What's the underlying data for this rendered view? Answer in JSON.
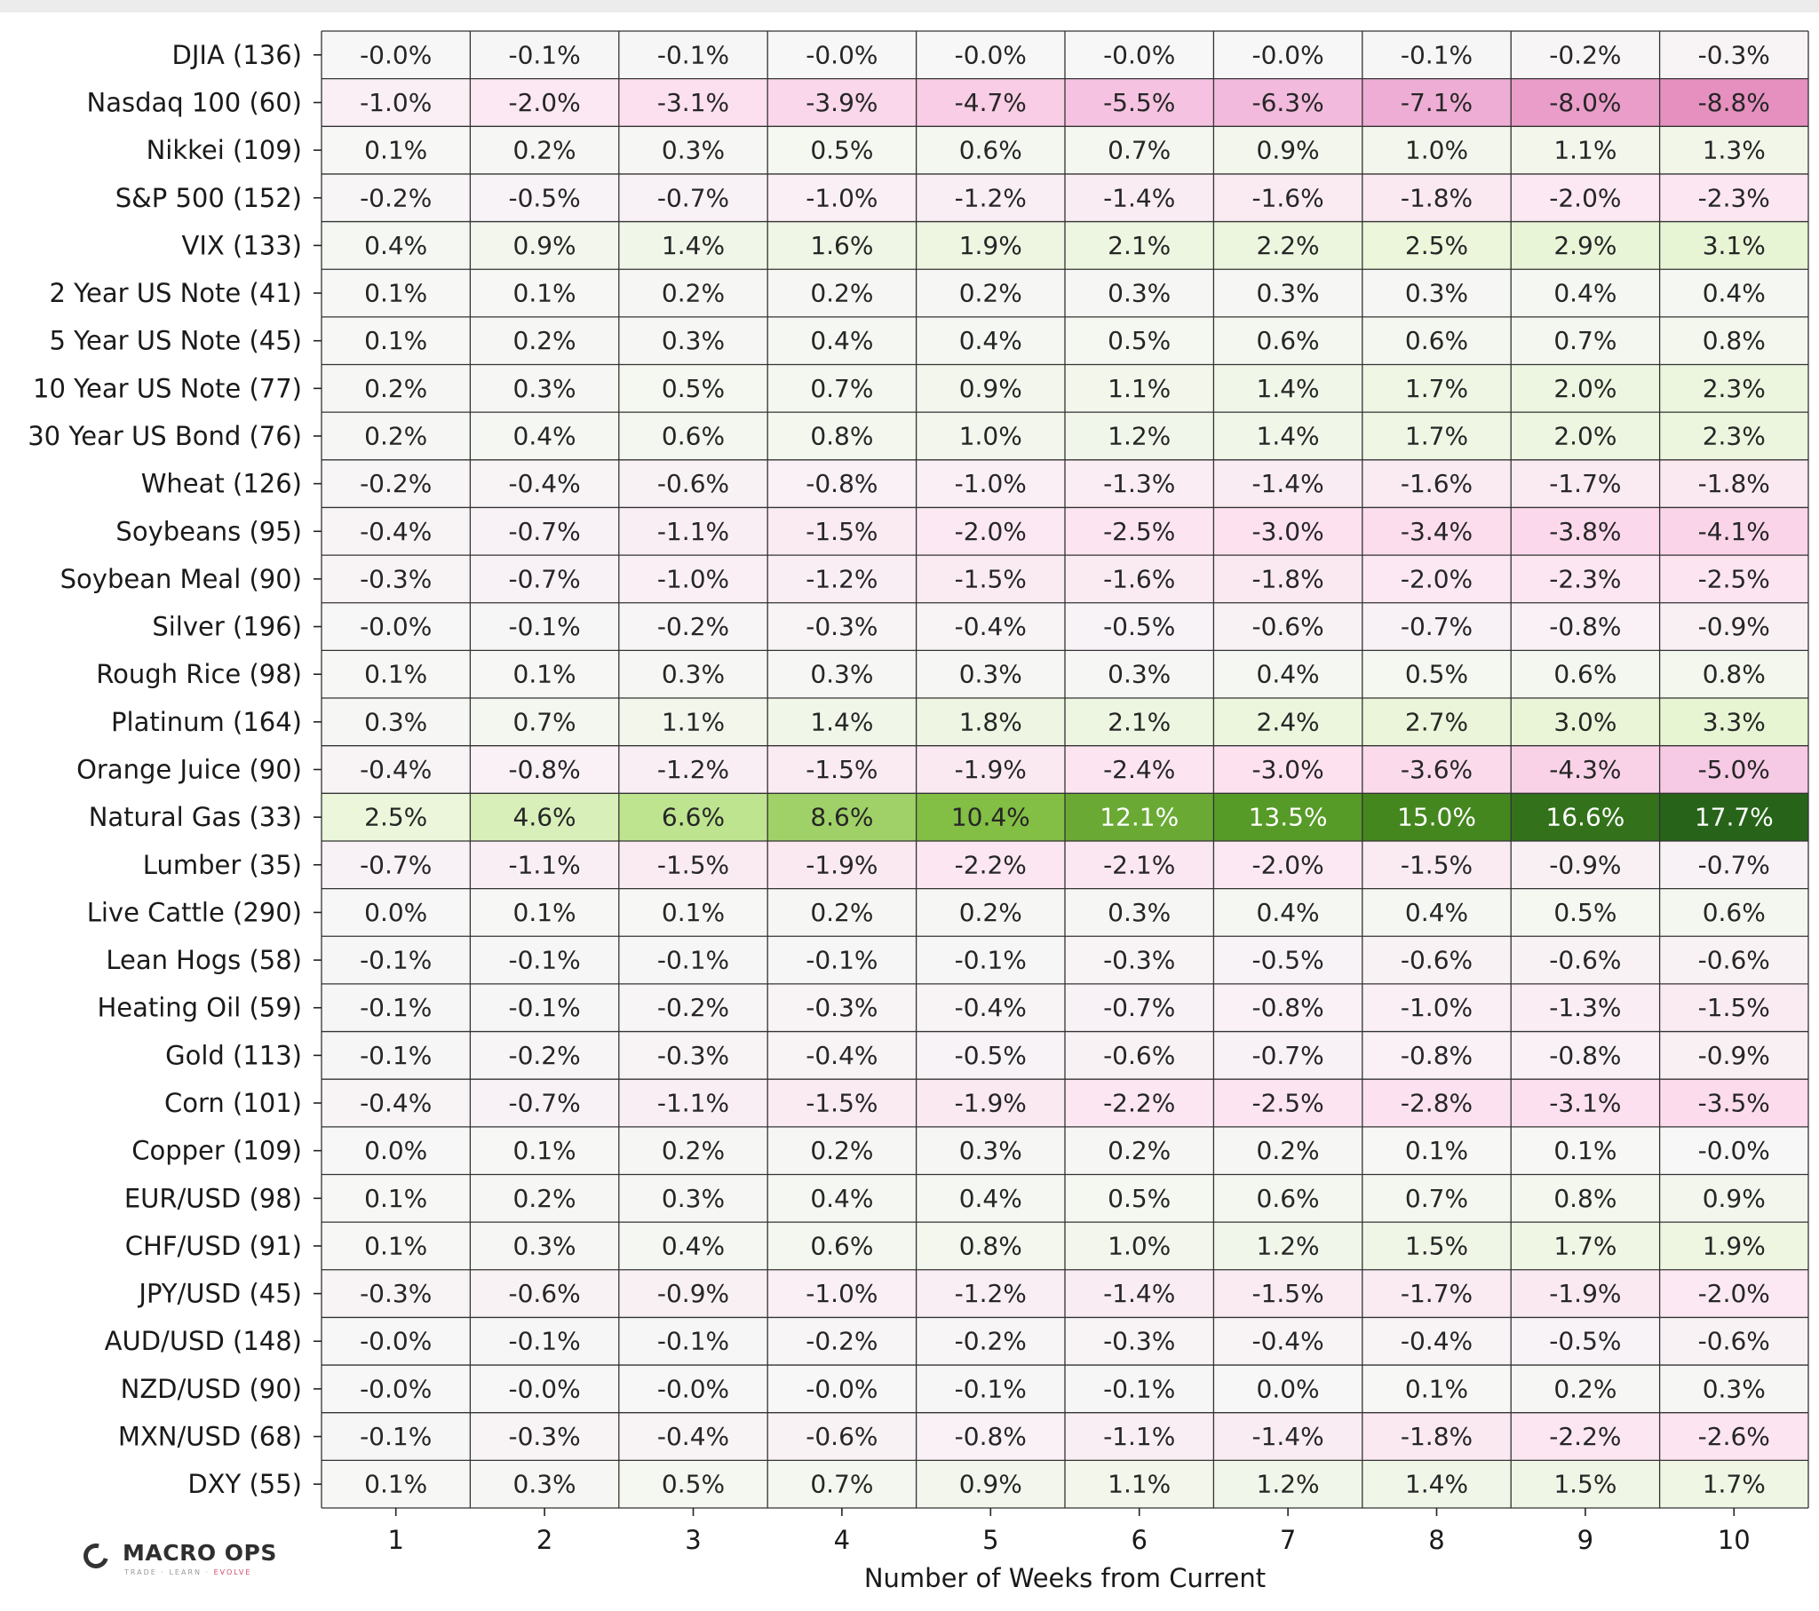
{
  "chart_data": {
    "type": "heatmap",
    "xlabel": "Number of Weeks from Current",
    "x": [
      "1",
      "2",
      "3",
      "4",
      "5",
      "6",
      "7",
      "8",
      "9",
      "10"
    ],
    "rows": [
      {
        "label": "DJIA (136)",
        "values": [
          -0.0,
          -0.1,
          -0.1,
          -0.0,
          -0.0,
          -0.0,
          -0.0,
          -0.1,
          -0.2,
          -0.3
        ],
        "text": [
          "-0.0%",
          "-0.1%",
          "-0.1%",
          "-0.0%",
          "-0.0%",
          "-0.0%",
          "-0.0%",
          "-0.1%",
          "-0.2%",
          "-0.3%"
        ]
      },
      {
        "label": "Nasdaq 100 (60)",
        "values": [
          -1.0,
          -2.0,
          -3.1,
          -3.9,
          -4.7,
          -5.5,
          -6.3,
          -7.1,
          -8.0,
          -8.8
        ],
        "text": [
          "-1.0%",
          "-2.0%",
          "-3.1%",
          "-3.9%",
          "-4.7%",
          "-5.5%",
          "-6.3%",
          "-7.1%",
          "-8.0%",
          "-8.8%"
        ]
      },
      {
        "label": "Nikkei (109)",
        "values": [
          0.1,
          0.2,
          0.3,
          0.5,
          0.6,
          0.7,
          0.9,
          1.0,
          1.1,
          1.3
        ],
        "text": [
          "0.1%",
          "0.2%",
          "0.3%",
          "0.5%",
          "0.6%",
          "0.7%",
          "0.9%",
          "1.0%",
          "1.1%",
          "1.3%"
        ]
      },
      {
        "label": "S&P 500 (152)",
        "values": [
          -0.2,
          -0.5,
          -0.7,
          -1.0,
          -1.2,
          -1.4,
          -1.6,
          -1.8,
          -2.0,
          -2.3
        ],
        "text": [
          "-0.2%",
          "-0.5%",
          "-0.7%",
          "-1.0%",
          "-1.2%",
          "-1.4%",
          "-1.6%",
          "-1.8%",
          "-2.0%",
          "-2.3%"
        ]
      },
      {
        "label": "VIX (133)",
        "values": [
          0.4,
          0.9,
          1.4,
          1.6,
          1.9,
          2.1,
          2.2,
          2.5,
          2.9,
          3.1
        ],
        "text": [
          "0.4%",
          "0.9%",
          "1.4%",
          "1.6%",
          "1.9%",
          "2.1%",
          "2.2%",
          "2.5%",
          "2.9%",
          "3.1%"
        ]
      },
      {
        "label": "2 Year US Note (41)",
        "values": [
          0.1,
          0.1,
          0.2,
          0.2,
          0.2,
          0.3,
          0.3,
          0.3,
          0.4,
          0.4
        ],
        "text": [
          "0.1%",
          "0.1%",
          "0.2%",
          "0.2%",
          "0.2%",
          "0.3%",
          "0.3%",
          "0.3%",
          "0.4%",
          "0.4%"
        ]
      },
      {
        "label": "5 Year US Note (45)",
        "values": [
          0.1,
          0.2,
          0.3,
          0.4,
          0.4,
          0.5,
          0.6,
          0.6,
          0.7,
          0.8
        ],
        "text": [
          "0.1%",
          "0.2%",
          "0.3%",
          "0.4%",
          "0.4%",
          "0.5%",
          "0.6%",
          "0.6%",
          "0.7%",
          "0.8%"
        ]
      },
      {
        "label": "10 Year US Note (77)",
        "values": [
          0.2,
          0.3,
          0.5,
          0.7,
          0.9,
          1.1,
          1.4,
          1.7,
          2.0,
          2.3
        ],
        "text": [
          "0.2%",
          "0.3%",
          "0.5%",
          "0.7%",
          "0.9%",
          "1.1%",
          "1.4%",
          "1.7%",
          "2.0%",
          "2.3%"
        ]
      },
      {
        "label": "30 Year US Bond (76)",
        "values": [
          0.2,
          0.4,
          0.6,
          0.8,
          1.0,
          1.2,
          1.4,
          1.7,
          2.0,
          2.3
        ],
        "text": [
          "0.2%",
          "0.4%",
          "0.6%",
          "0.8%",
          "1.0%",
          "1.2%",
          "1.4%",
          "1.7%",
          "2.0%",
          "2.3%"
        ]
      },
      {
        "label": "Wheat (126)",
        "values": [
          -0.2,
          -0.4,
          -0.6,
          -0.8,
          -1.0,
          -1.3,
          -1.4,
          -1.6,
          -1.7,
          -1.8
        ],
        "text": [
          "-0.2%",
          "-0.4%",
          "-0.6%",
          "-0.8%",
          "-1.0%",
          "-1.3%",
          "-1.4%",
          "-1.6%",
          "-1.7%",
          "-1.8%"
        ]
      },
      {
        "label": "Soybeans (95)",
        "values": [
          -0.4,
          -0.7,
          -1.1,
          -1.5,
          -2.0,
          -2.5,
          -3.0,
          -3.4,
          -3.8,
          -4.1
        ],
        "text": [
          "-0.4%",
          "-0.7%",
          "-1.1%",
          "-1.5%",
          "-2.0%",
          "-2.5%",
          "-3.0%",
          "-3.4%",
          "-3.8%",
          "-4.1%"
        ]
      },
      {
        "label": "Soybean Meal (90)",
        "values": [
          -0.3,
          -0.7,
          -1.0,
          -1.2,
          -1.5,
          -1.6,
          -1.8,
          -2.0,
          -2.3,
          -2.5
        ],
        "text": [
          "-0.3%",
          "-0.7%",
          "-1.0%",
          "-1.2%",
          "-1.5%",
          "-1.6%",
          "-1.8%",
          "-2.0%",
          "-2.3%",
          "-2.5%"
        ]
      },
      {
        "label": "Silver (196)",
        "values": [
          -0.0,
          -0.1,
          -0.2,
          -0.3,
          -0.4,
          -0.5,
          -0.6,
          -0.7,
          -0.8,
          -0.9
        ],
        "text": [
          "-0.0%",
          "-0.1%",
          "-0.2%",
          "-0.3%",
          "-0.4%",
          "-0.5%",
          "-0.6%",
          "-0.7%",
          "-0.8%",
          "-0.9%"
        ]
      },
      {
        "label": "Rough Rice (98)",
        "values": [
          0.1,
          0.1,
          0.3,
          0.3,
          0.3,
          0.3,
          0.4,
          0.5,
          0.6,
          0.8
        ],
        "text": [
          "0.1%",
          "0.1%",
          "0.3%",
          "0.3%",
          "0.3%",
          "0.3%",
          "0.4%",
          "0.5%",
          "0.6%",
          "0.8%"
        ]
      },
      {
        "label": "Platinum (164)",
        "values": [
          0.3,
          0.7,
          1.1,
          1.4,
          1.8,
          2.1,
          2.4,
          2.7,
          3.0,
          3.3
        ],
        "text": [
          "0.3%",
          "0.7%",
          "1.1%",
          "1.4%",
          "1.8%",
          "2.1%",
          "2.4%",
          "2.7%",
          "3.0%",
          "3.3%"
        ]
      },
      {
        "label": "Orange Juice (90)",
        "values": [
          -0.4,
          -0.8,
          -1.2,
          -1.5,
          -1.9,
          -2.4,
          -3.0,
          -3.6,
          -4.3,
          -5.0
        ],
        "text": [
          "-0.4%",
          "-0.8%",
          "-1.2%",
          "-1.5%",
          "-1.9%",
          "-2.4%",
          "-3.0%",
          "-3.6%",
          "-4.3%",
          "-5.0%"
        ]
      },
      {
        "label": "Natural Gas (33)",
        "values": [
          2.5,
          4.6,
          6.6,
          8.6,
          10.4,
          12.1,
          13.5,
          15.0,
          16.6,
          17.7
        ],
        "text": [
          "2.5%",
          "4.6%",
          "6.6%",
          "8.6%",
          "10.4%",
          "12.1%",
          "13.5%",
          "15.0%",
          "16.6%",
          "17.7%"
        ]
      },
      {
        "label": "Lumber (35)",
        "values": [
          -0.7,
          -1.1,
          -1.5,
          -1.9,
          -2.2,
          -2.1,
          -2.0,
          -1.5,
          -0.9,
          -0.7
        ],
        "text": [
          "-0.7%",
          "-1.1%",
          "-1.5%",
          "-1.9%",
          "-2.2%",
          "-2.1%",
          "-2.0%",
          "-1.5%",
          "-0.9%",
          "-0.7%"
        ]
      },
      {
        "label": "Live Cattle (290)",
        "values": [
          0.0,
          0.1,
          0.1,
          0.2,
          0.2,
          0.3,
          0.4,
          0.4,
          0.5,
          0.6
        ],
        "text": [
          "0.0%",
          "0.1%",
          "0.1%",
          "0.2%",
          "0.2%",
          "0.3%",
          "0.4%",
          "0.4%",
          "0.5%",
          "0.6%"
        ]
      },
      {
        "label": "Lean Hogs (58)",
        "values": [
          -0.1,
          -0.1,
          -0.1,
          -0.1,
          -0.1,
          -0.3,
          -0.5,
          -0.6,
          -0.6,
          -0.6
        ],
        "text": [
          "-0.1%",
          "-0.1%",
          "-0.1%",
          "-0.1%",
          "-0.1%",
          "-0.3%",
          "-0.5%",
          "-0.6%",
          "-0.6%",
          "-0.6%"
        ]
      },
      {
        "label": "Heating Oil (59)",
        "values": [
          -0.1,
          -0.1,
          -0.2,
          -0.3,
          -0.4,
          -0.7,
          -0.8,
          -1.0,
          -1.3,
          -1.5
        ],
        "text": [
          "-0.1%",
          "-0.1%",
          "-0.2%",
          "-0.3%",
          "-0.4%",
          "-0.7%",
          "-0.8%",
          "-1.0%",
          "-1.3%",
          "-1.5%"
        ]
      },
      {
        "label": "Gold (113)",
        "values": [
          -0.1,
          -0.2,
          -0.3,
          -0.4,
          -0.5,
          -0.6,
          -0.7,
          -0.8,
          -0.8,
          -0.9
        ],
        "text": [
          "-0.1%",
          "-0.2%",
          "-0.3%",
          "-0.4%",
          "-0.5%",
          "-0.6%",
          "-0.7%",
          "-0.8%",
          "-0.8%",
          "-0.9%"
        ]
      },
      {
        "label": "Corn (101)",
        "values": [
          -0.4,
          -0.7,
          -1.1,
          -1.5,
          -1.9,
          -2.2,
          -2.5,
          -2.8,
          -3.1,
          -3.5
        ],
        "text": [
          "-0.4%",
          "-0.7%",
          "-1.1%",
          "-1.5%",
          "-1.9%",
          "-2.2%",
          "-2.5%",
          "-2.8%",
          "-3.1%",
          "-3.5%"
        ]
      },
      {
        "label": "Copper (109)",
        "values": [
          0.0,
          0.1,
          0.2,
          0.2,
          0.3,
          0.2,
          0.2,
          0.1,
          0.1,
          -0.0
        ],
        "text": [
          "0.0%",
          "0.1%",
          "0.2%",
          "0.2%",
          "0.3%",
          "0.2%",
          "0.2%",
          "0.1%",
          "0.1%",
          "-0.0%"
        ]
      },
      {
        "label": "EUR/USD (98)",
        "values": [
          0.1,
          0.2,
          0.3,
          0.4,
          0.4,
          0.5,
          0.6,
          0.7,
          0.8,
          0.9
        ],
        "text": [
          "0.1%",
          "0.2%",
          "0.3%",
          "0.4%",
          "0.4%",
          "0.5%",
          "0.6%",
          "0.7%",
          "0.8%",
          "0.9%"
        ]
      },
      {
        "label": "CHF/USD (91)",
        "values": [
          0.1,
          0.3,
          0.4,
          0.6,
          0.8,
          1.0,
          1.2,
          1.5,
          1.7,
          1.9
        ],
        "text": [
          "0.1%",
          "0.3%",
          "0.4%",
          "0.6%",
          "0.8%",
          "1.0%",
          "1.2%",
          "1.5%",
          "1.7%",
          "1.9%"
        ]
      },
      {
        "label": "JPY/USD (45)",
        "values": [
          -0.3,
          -0.6,
          -0.9,
          -1.0,
          -1.2,
          -1.4,
          -1.5,
          -1.7,
          -1.9,
          -2.0
        ],
        "text": [
          "-0.3%",
          "-0.6%",
          "-0.9%",
          "-1.0%",
          "-1.2%",
          "-1.4%",
          "-1.5%",
          "-1.7%",
          "-1.9%",
          "-2.0%"
        ]
      },
      {
        "label": "AUD/USD (148)",
        "values": [
          -0.0,
          -0.1,
          -0.1,
          -0.2,
          -0.2,
          -0.3,
          -0.4,
          -0.4,
          -0.5,
          -0.6
        ],
        "text": [
          "-0.0%",
          "-0.1%",
          "-0.1%",
          "-0.2%",
          "-0.2%",
          "-0.3%",
          "-0.4%",
          "-0.4%",
          "-0.5%",
          "-0.6%"
        ]
      },
      {
        "label": "NZD/USD (90)",
        "values": [
          -0.0,
          -0.0,
          -0.0,
          -0.0,
          -0.1,
          -0.1,
          0.0,
          0.1,
          0.2,
          0.3
        ],
        "text": [
          "-0.0%",
          "-0.0%",
          "-0.0%",
          "-0.0%",
          "-0.1%",
          "-0.1%",
          "0.0%",
          "0.1%",
          "0.2%",
          "0.3%"
        ]
      },
      {
        "label": "MXN/USD (68)",
        "values": [
          -0.1,
          -0.3,
          -0.4,
          -0.6,
          -0.8,
          -1.1,
          -1.4,
          -1.8,
          -2.2,
          -2.6
        ],
        "text": [
          "-0.1%",
          "-0.3%",
          "-0.4%",
          "-0.6%",
          "-0.8%",
          "-1.1%",
          "-1.4%",
          "-1.8%",
          "-2.2%",
          "-2.6%"
        ]
      },
      {
        "label": "DXY (55)",
        "values": [
          0.1,
          0.3,
          0.5,
          0.7,
          0.9,
          1.1,
          1.2,
          1.4,
          1.5,
          1.7
        ],
        "text": [
          "0.1%",
          "0.3%",
          "0.5%",
          "0.7%",
          "0.9%",
          "1.1%",
          "1.2%",
          "1.4%",
          "1.5%",
          "1.7%"
        ]
      }
    ],
    "colormap": "PiYG (diverging: magenta negative, green positive)",
    "color_range": [
      -17.7,
      17.7
    ],
    "grid": true,
    "legend": "none"
  },
  "colors": {
    "negative_strong": "#8e0152",
    "negative_mid": "#de77ae",
    "negative_light": "#fde0ef",
    "neutral": "#f7f7f7",
    "positive_light": "#e6f5d0",
    "positive_mid": "#7fbc41",
    "positive_strong": "#276419",
    "grid_line": "#333333",
    "text_dark": "#262626",
    "text_light": "#ffffff"
  },
  "logo": {
    "name": "MACRO OPS",
    "tagline_parts": [
      "TRADE",
      "LEARN",
      "EVOLVE"
    ]
  }
}
